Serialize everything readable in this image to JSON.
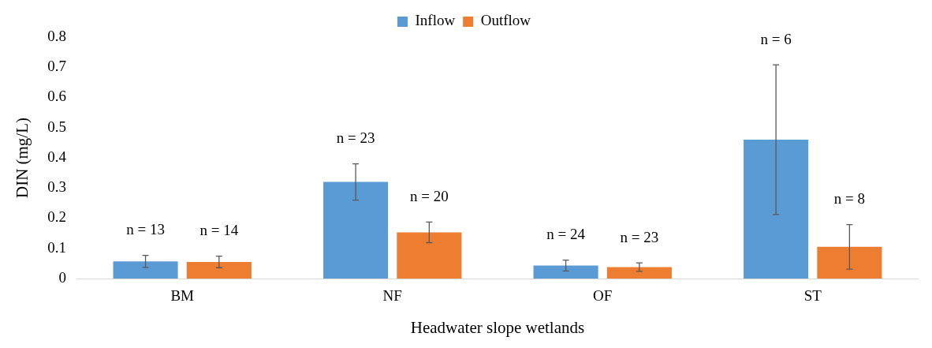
{
  "chart_data": {
    "type": "bar",
    "xlabel": "Headwater slope wetlands",
    "ylabel": "DIN (mg/L)",
    "categories": [
      "BM",
      "NF",
      "OF",
      "ST"
    ],
    "series": [
      {
        "name": "Inflow",
        "color": "#5b9bd5",
        "values": [
          0.057,
          0.32,
          0.043,
          0.46
        ],
        "errors": [
          0.02,
          0.06,
          0.018,
          0.248
        ]
      },
      {
        "name": "Outflow",
        "color": "#ed7d31",
        "values": [
          0.055,
          0.153,
          0.038,
          0.105
        ],
        "errors": [
          0.019,
          0.034,
          0.014,
          0.074
        ]
      }
    ],
    "annotations": [
      "n = 13",
      "n = 14",
      "n = 23",
      "n = 20",
      "n = 24",
      "n = 23",
      "n = 6",
      "n = 8"
    ],
    "ylim": [
      0,
      0.8
    ],
    "yticks": [
      0,
      0.1,
      0.2,
      0.3,
      0.4,
      0.5,
      0.6,
      0.7,
      0.8
    ],
    "grid": false,
    "legend": "top"
  }
}
